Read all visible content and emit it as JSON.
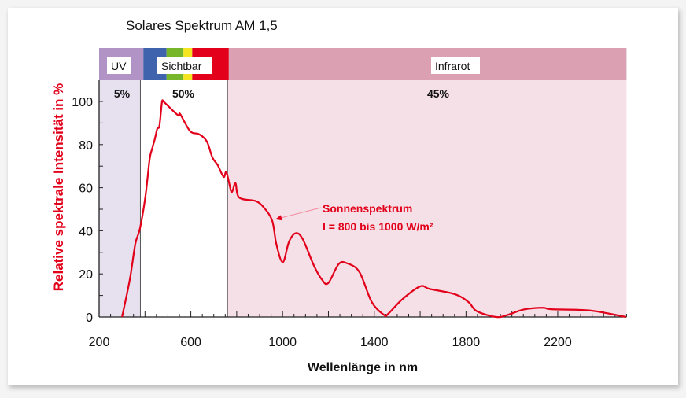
{
  "chart_data": {
    "type": "line",
    "title": "Solares Spektrum AM 1,5",
    "xlabel": "Wellenlänge in nm",
    "ylabel": "Relative spektrale Intensität in %",
    "xlim": [
      200,
      2500
    ],
    "ylim": [
      0,
      105
    ],
    "xticks": [
      200,
      600,
      1000,
      1400,
      1800,
      2200
    ],
    "yticks": [
      0,
      20,
      40,
      60,
      80,
      100
    ],
    "grid": false,
    "regions": [
      {
        "label": "UV",
        "percent": "5%",
        "from": 200,
        "to": 380,
        "band_color": "#b293c6",
        "fill_color": "#e7e0ee"
      },
      {
        "label": "Sichtbar",
        "percent": "50%",
        "from": 380,
        "to": 760,
        "band_color": "#e2001a",
        "fill_color": "#ffffff"
      },
      {
        "label": "Infrarot",
        "percent": "45%",
        "from": 760,
        "to": 2500,
        "band_color": "#dba0b2",
        "fill_color": "#f6e0e7"
      }
    ],
    "visible_colors": [
      {
        "from": 393,
        "to": 494,
        "color": "#3f63ad"
      },
      {
        "from": 494,
        "to": 568,
        "color": "#77b52a"
      },
      {
        "from": 568,
        "to": 606,
        "color": "#f5e521"
      },
      {
        "from": 606,
        "to": 765,
        "color": "#e2001a"
      }
    ],
    "series": [
      {
        "color": "#e2001a",
        "x": [
          300,
          334,
          358,
          378,
          402,
          420,
          431,
          443,
          454,
          463,
          474,
          480,
          495,
          545,
          553,
          597,
          636,
          670,
          694,
          717,
          743,
          755,
          774,
          781,
          795,
          811,
          883,
          919,
          955,
          973,
          1001,
          1028,
          1058,
          1088,
          1136,
          1172,
          1199,
          1245,
          1281,
          1335,
          1389,
          1443,
          1461,
          1522,
          1600,
          1642,
          1751,
          1811,
          1847,
          1931,
          1980,
          2052,
          2136,
          2172,
          2341,
          2498
        ],
        "y": [
          0,
          17.5,
          34,
          41,
          56,
          73,
          78,
          82.6,
          87.5,
          88.7,
          99.6,
          100,
          98.5,
          93.5,
          94.2,
          86.2,
          84.8,
          81.4,
          74,
          70.5,
          65,
          67.2,
          58.9,
          58.3,
          62,
          55.4,
          53.8,
          50.7,
          44.6,
          33.7,
          25.4,
          34.9,
          38.9,
          36.1,
          24,
          17.3,
          15.7,
          24.6,
          24.9,
          20.9,
          6.9,
          0.9,
          1.5,
          8.2,
          14.2,
          13,
          10.6,
          6.9,
          2.7,
          0,
          0.9,
          3.5,
          4.3,
          3.6,
          3,
          0
        ]
      }
    ],
    "annotation": {
      "line1": "Sonnenspektrum",
      "line2": "I = 800 bis 1000 W/m²",
      "points_to": [
        955,
        44.6
      ],
      "color": "#e2001a"
    }
  }
}
